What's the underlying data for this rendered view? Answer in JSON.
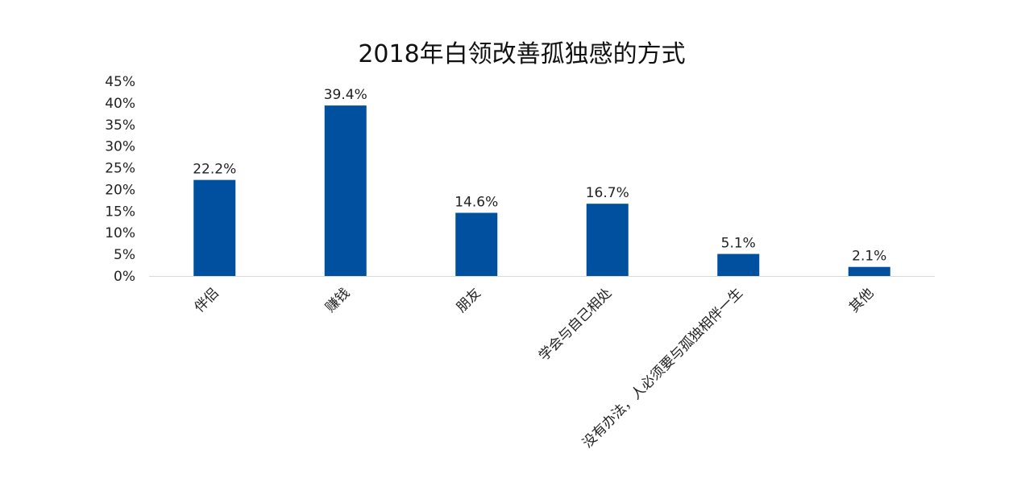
{
  "chart_data": {
    "type": "bar",
    "title": "2018年白领改善孤独感的方式",
    "categories": [
      "伴侣",
      "赚钱",
      "朋友",
      "学会与自己相处",
      "没有办法，人必须要与孤独相伴一生",
      "其他"
    ],
    "values": [
      22.2,
      39.4,
      14.6,
      16.7,
      5.1,
      2.1
    ],
    "data_labels": [
      "22.2%",
      "39.4%",
      "14.6%",
      "16.7%",
      "5.1%",
      "2.1%"
    ],
    "y_ticks": [
      "0%",
      "5%",
      "10%",
      "15%",
      "20%",
      "25%",
      "30%",
      "35%",
      "40%",
      "45%"
    ],
    "ylim": [
      0,
      45
    ],
    "xlabel": "",
    "ylabel": "",
    "grid": false,
    "legend": "none",
    "bar_color": "#0050A0"
  }
}
